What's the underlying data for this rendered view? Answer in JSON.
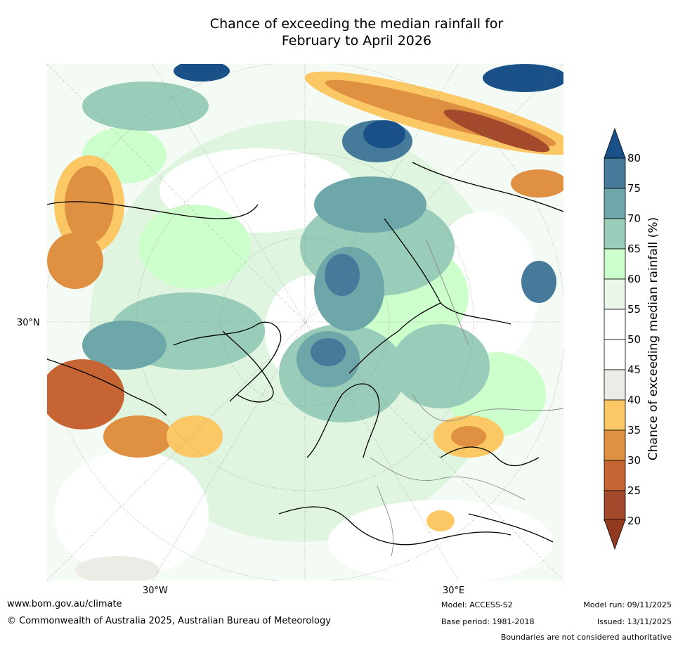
{
  "title": {
    "line1": "Chance of exceeding the median rainfall for",
    "line2": "February to April 2026"
  },
  "map": {
    "lat_label": "30°N",
    "lon_label_west": "30°W",
    "lon_label_east": "30°E",
    "projection": "north-polar-stereographic"
  },
  "colorbar": {
    "label": "Chance of exceeding median rainfall (%)",
    "ticks": [
      "80",
      "75",
      "70",
      "65",
      "60",
      "55",
      "50",
      "45",
      "40",
      "35",
      "30",
      "25",
      "20"
    ],
    "bins": [
      {
        "range": "75-80",
        "color": "#467a9b"
      },
      {
        "range": "70-75",
        "color": "#6ea7a9"
      },
      {
        "range": "65-70",
        "color": "#99ccb9"
      },
      {
        "range": "60-65",
        "color": "#ccffcc"
      },
      {
        "range": "55-60",
        "color": "#e9f6e9"
      },
      {
        "range": "50-55",
        "color": "#ffffff"
      },
      {
        "range": "45-50",
        "color": "#ffffff"
      },
      {
        "range": "40-45",
        "color": "#ecebe6"
      },
      {
        "range": "35-40",
        "color": "#fcc866"
      },
      {
        "range": "30-35",
        "color": "#df9040"
      },
      {
        "range": "25-30",
        "color": "#c66533"
      },
      {
        "range": "20-25",
        "color": "#a24a2b"
      }
    ],
    "over_color": "#1a5088",
    "under_color": "#913a20"
  },
  "footer": {
    "url": "www.bom.gov.au/climate",
    "copyright": "© Commonwealth of Australia 2025, Australian Bureau of Meteorology",
    "model": "Model: ACCESS-S2",
    "base_period": "Base period: 1981-2018",
    "model_run": "Model run: 09/11/2025",
    "issued": "Issued: 13/11/2025",
    "boundaries": "Boundaries are not considered authoritative"
  }
}
